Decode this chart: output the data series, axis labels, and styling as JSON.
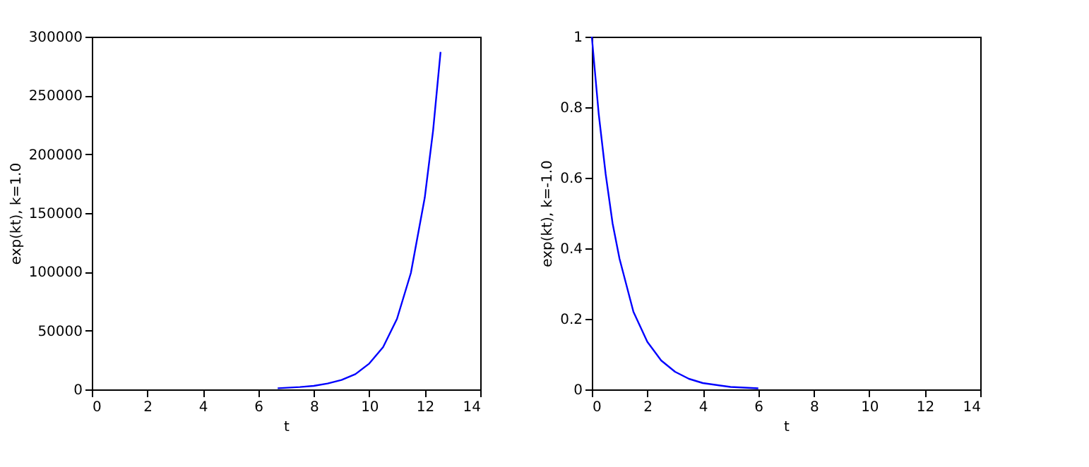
{
  "chart_data": [
    {
      "type": "line",
      "xlabel": "t",
      "ylabel": "exp(kt), k=1.0",
      "xlim": [
        0,
        14
      ],
      "xticks": [
        0,
        2,
        4,
        6,
        8,
        10,
        12,
        14
      ],
      "ylim": [
        0,
        300000
      ],
      "yticks": [
        0,
        50000,
        100000,
        150000,
        200000,
        250000,
        300000
      ],
      "grid": false,
      "series": [
        {
          "color": "#0000ff",
          "x": [
            6.7,
            7.5,
            8,
            8.5,
            9,
            9.5,
            10,
            10.5,
            11,
            11.5,
            12,
            12.3,
            12.57
          ],
          "values": [
            1000,
            2000,
            3000,
            5000,
            8000,
            13000,
            22000,
            36000,
            60000,
            99000,
            163000,
            220000,
            287000
          ]
        }
      ]
    },
    {
      "type": "line",
      "xlabel": "t",
      "ylabel": "exp(kt), k=-1.0",
      "xlim": [
        0,
        14
      ],
      "xticks": [
        0,
        2,
        4,
        6,
        8,
        10,
        12,
        14
      ],
      "ylim": [
        0,
        1
      ],
      "yticks": [
        0,
        0.2,
        0.4,
        0.6,
        0.8,
        1
      ],
      "grid": false,
      "series": [
        {
          "color": "#0000ff",
          "x": [
            0,
            0.25,
            0.5,
            0.75,
            1,
            1.5,
            2,
            2.5,
            3,
            3.5,
            4,
            5,
            6
          ],
          "values": [
            1,
            0.78,
            0.61,
            0.47,
            0.37,
            0.22,
            0.135,
            0.082,
            0.05,
            0.03,
            0.018,
            0.007,
            0.003
          ]
        }
      ]
    }
  ]
}
